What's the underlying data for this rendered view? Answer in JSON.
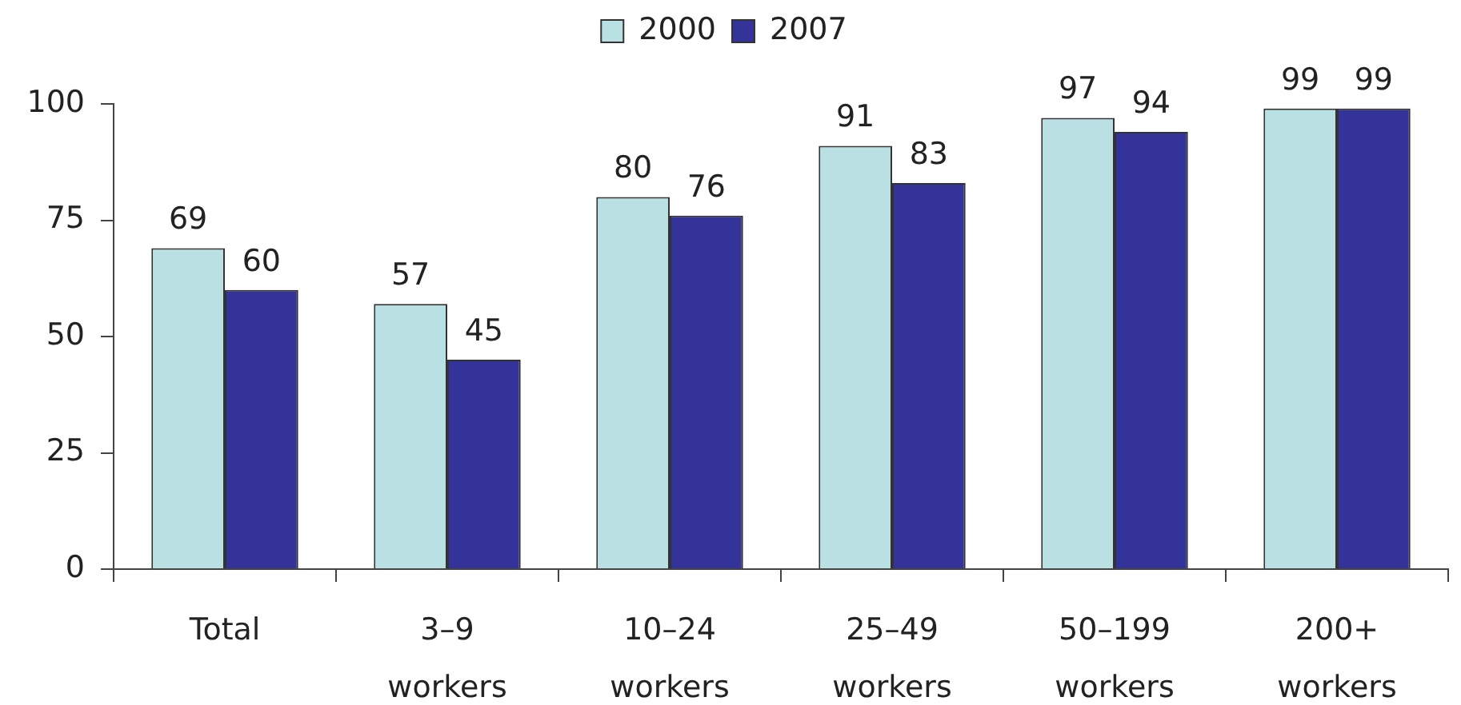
{
  "chart_data": {
    "type": "bar",
    "categories": [
      "Total",
      "3–9 workers",
      "10–24 workers",
      "25–49 workers",
      "50–199 workers",
      "200+ workers"
    ],
    "series": [
      {
        "name": "2000",
        "color": "#b9e0e2",
        "values": [
          69,
          57,
          80,
          91,
          97,
          99
        ]
      },
      {
        "name": "2007",
        "color": "#333399",
        "values": [
          60,
          45,
          76,
          83,
          94,
          99
        ]
      }
    ],
    "ylim": [
      0,
      100
    ],
    "yticks": [
      0,
      25,
      50,
      75,
      100
    ],
    "legend": "top",
    "data_labels": true
  }
}
